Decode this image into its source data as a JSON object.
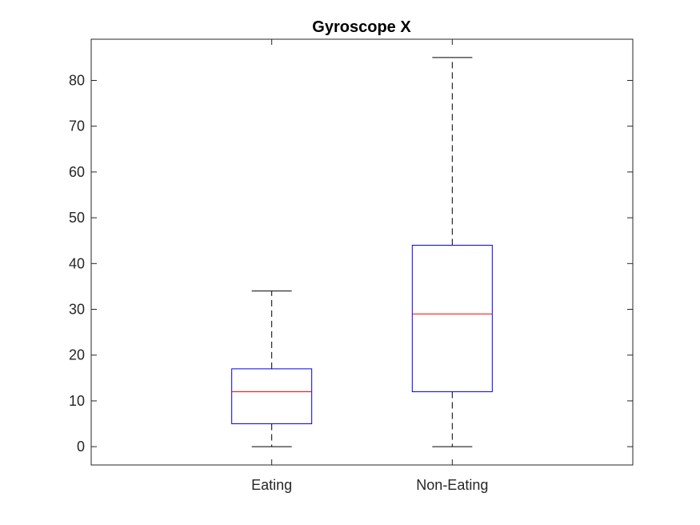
{
  "chart_data": {
    "type": "boxplot",
    "title": "Gyroscope X",
    "xlabel": "",
    "ylabel": "",
    "categories": [
      "Eating",
      "Non-Eating"
    ],
    "boxes": [
      {
        "category": "Eating",
        "min": 0,
        "q1": 5,
        "median": 12,
        "q3": 17,
        "max": 34
      },
      {
        "category": "Non-Eating",
        "min": 0,
        "q1": 12,
        "median": 29,
        "q3": 44,
        "max": 85
      }
    ],
    "ylim": [
      -4,
      89
    ],
    "yticks": [
      0,
      10,
      20,
      30,
      40,
      50,
      60,
      70,
      80
    ],
    "grid": false,
    "colors": {
      "box": "#0000ff",
      "median": "#ff0000",
      "whisker": "#000000",
      "axes": "#262626"
    }
  }
}
